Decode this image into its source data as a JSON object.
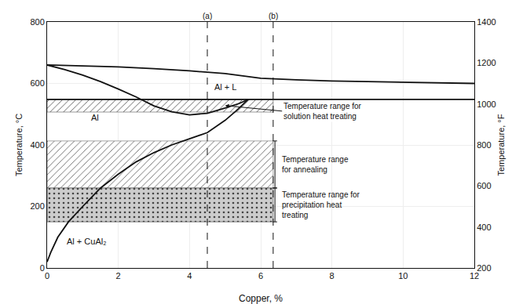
{
  "chart_data": {
    "type": "line",
    "xlabel": "Copper, %",
    "ylabel": "Temperature, °C",
    "y2label": "Temperature, °F",
    "xlim": [
      0,
      12
    ],
    "ylim": [
      0,
      800
    ],
    "y2lim": [
      200,
      1400
    ],
    "xticks": [
      0,
      2,
      4,
      6,
      8,
      10,
      12
    ],
    "yticks": [
      0,
      200,
      400,
      600,
      800
    ],
    "y2ticks": [
      200,
      400,
      600,
      800,
      1000,
      1200,
      1400
    ],
    "grid": true,
    "color": "#111111",
    "series": [
      {
        "x": [
          0,
          1,
          2,
          3,
          4,
          5,
          5.65,
          6,
          7,
          8,
          9,
          10,
          11,
          12
        ],
        "values": [
          660,
          657,
          654,
          648,
          641,
          632,
          621,
          617,
          612,
          608,
          606,
          604,
          602,
          600
        ]
      },
      {
        "x": [
          0,
          0.5,
          1.0,
          1.5,
          2.0,
          2.5,
          3.0,
          3.5,
          4.0,
          4.5,
          5.0,
          5.4,
          5.65
        ],
        "values": [
          660,
          645,
          627,
          606,
          582,
          556,
          527,
          508,
          498,
          503,
          520,
          535,
          548
        ]
      },
      {
        "x": [
          0,
          12
        ],
        "values": [
          548,
          548
        ]
      },
      {
        "x": [
          0,
          0.1,
          0.3,
          0.6,
          1.0,
          1.5,
          2.0,
          2.5,
          3.0,
          3.5,
          4.0,
          4.5,
          5.0,
          5.3,
          5.65
        ],
        "values": [
          20,
          50,
          100,
          150,
          200,
          260,
          305,
          345,
          375,
          400,
          420,
          440,
          480,
          510,
          548
        ]
      }
    ],
    "regions": [
      {
        "x": [
          0,
          6.35
        ],
        "y": [
          507,
          548
        ],
        "color": "#ffffff"
      },
      {
        "x": [
          0,
          6.35
        ],
        "y": [
          260,
          413
        ],
        "color": "#ffffff",
        "label": "Temperature range\nfor annealing"
      },
      {
        "x": [
          0,
          6.35
        ],
        "y": [
          150,
          260
        ],
        "color": "#cccccc",
        "label": "Temperature range for\nprecipitation heat\ntreating"
      }
    ],
    "vlines": [
      {
        "x": 4.5,
        "label": "(a)",
        "line_style": "dashed"
      },
      {
        "x": 6.35,
        "label": "(b)",
        "line_style": "dashed"
      }
    ],
    "annotations": [
      {
        "text": "Al",
        "x": 1.2,
        "y": 470
      },
      {
        "text": "Al + CuAl₂",
        "x": 0.5,
        "y": 65
      },
      {
        "text": "Al + L",
        "x": 4.65,
        "y": 568
      },
      {
        "text": "Temperature range for\nsolution heat treating",
        "x": 6.6,
        "y": 510,
        "arrow_x": 5.0,
        "arrow_y": 528
      }
    ]
  }
}
